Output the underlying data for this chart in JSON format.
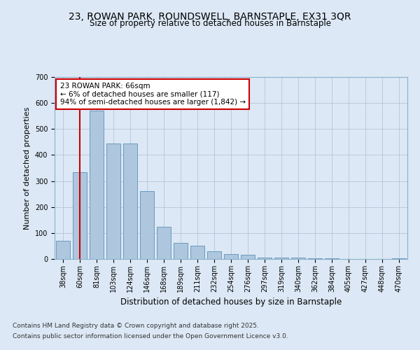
{
  "title1": "23, ROWAN PARK, ROUNDSWELL, BARNSTAPLE, EX31 3QR",
  "title2": "Size of property relative to detached houses in Barnstaple",
  "xlabel": "Distribution of detached houses by size in Barnstaple",
  "ylabel": "Number of detached properties",
  "categories": [
    "38sqm",
    "60sqm",
    "81sqm",
    "103sqm",
    "124sqm",
    "146sqm",
    "168sqm",
    "189sqm",
    "211sqm",
    "232sqm",
    "254sqm",
    "276sqm",
    "297sqm",
    "319sqm",
    "340sqm",
    "362sqm",
    "384sqm",
    "405sqm",
    "427sqm",
    "448sqm",
    "470sqm"
  ],
  "values": [
    70,
    333,
    570,
    445,
    445,
    260,
    125,
    62,
    52,
    30,
    18,
    15,
    5,
    5,
    5,
    2,
    2,
    1,
    1,
    0,
    4
  ],
  "bar_color": "#aec6de",
  "bar_edge_color": "#6a9cbf",
  "vline_x": 1,
  "vline_color": "#cc0000",
  "annotation_text": "23 ROWAN PARK: 66sqm\n← 6% of detached houses are smaller (117)\n94% of semi-detached houses are larger (1,842) →",
  "annotation_box_color": "#ffffff",
  "annotation_box_edge": "#cc0000",
  "background_color": "#dce8f5",
  "plot_bg_color": "#dce8f5",
  "ylim": [
    0,
    700
  ],
  "yticks": [
    0,
    100,
    200,
    300,
    400,
    500,
    600,
    700
  ],
  "footer_line1": "Contains HM Land Registry data © Crown copyright and database right 2025.",
  "footer_line2": "Contains public sector information licensed under the Open Government Licence v3.0.",
  "title1_fontsize": 10,
  "title2_fontsize": 8.5,
  "xlabel_fontsize": 8.5,
  "ylabel_fontsize": 8,
  "tick_fontsize": 7,
  "footer_fontsize": 6.5,
  "ann_fontsize": 7.5
}
